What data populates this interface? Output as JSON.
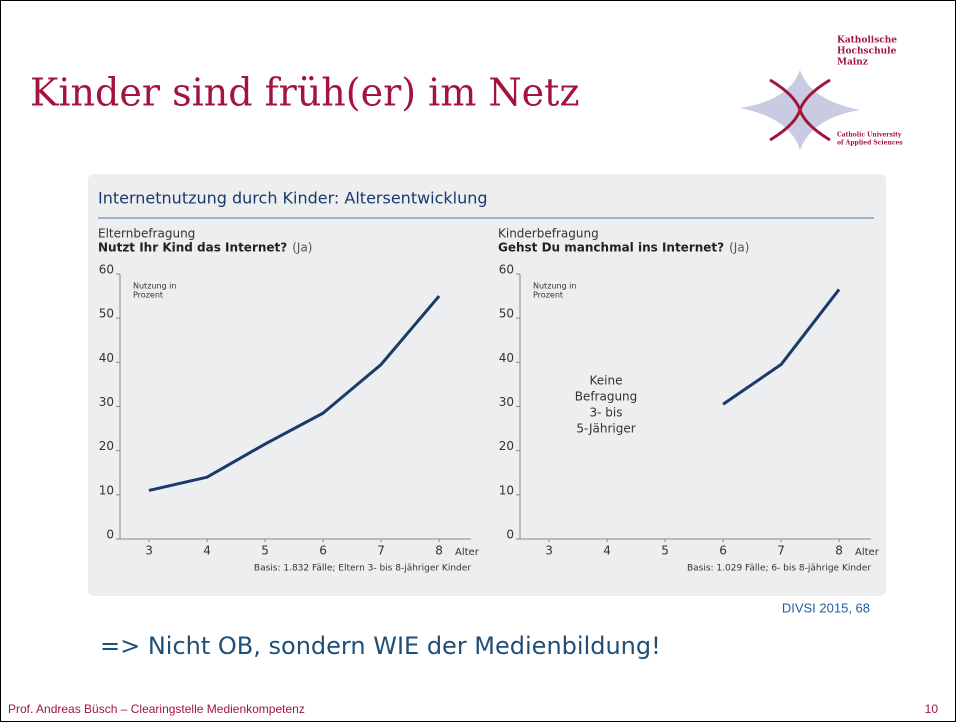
{
  "slide": {
    "title": "Kinder sind früh(er) im Netz",
    "logo": {
      "name_lines": [
        "Katholische",
        "Hochschule",
        "Mainz"
      ],
      "english_lines": [
        "Catholic University",
        "of Applied Sciences"
      ]
    },
    "panel_title": "Internetnutzung durch Kinder: Altersentwicklung",
    "source": "DIVSI 2015, 68",
    "bullet": "=> Nicht OB, sondern WIE der Medienbildung!",
    "footer": "Prof. Andreas Büsch – Clearingstelle Medienkompetenz",
    "page_number": "10"
  },
  "chart_data": [
    {
      "type": "line",
      "subtitle": "Elternbefragung",
      "question": "Nutzt Ihr Kind das Internet?",
      "answer": "(Ja)",
      "y_annotation_lines": [
        "Nutzung in",
        "Prozent"
      ],
      "x_label": "Alter",
      "note": "Basis: 1.832 Fälle; Eltern 3- bis 8-jähriger Kinder",
      "x": [
        3,
        4,
        5,
        6,
        7,
        8
      ],
      "series": [
        {
          "color": "#1b3a6b",
          "values": [
            11,
            14,
            21.5,
            28.5,
            39.5,
            55
          ]
        }
      ],
      "xlim": [
        2.5,
        8.55
      ],
      "xticks": [
        3,
        4,
        5,
        6,
        7,
        8
      ],
      "ylim": [
        0,
        60
      ],
      "yticks": [
        0,
        10,
        20,
        30,
        40,
        50,
        60
      ]
    },
    {
      "type": "line",
      "subtitle": "Kinderbefragung",
      "question": "Gehst Du manchmal ins Internet?",
      "answer": "(Ja)",
      "y_annotation_lines": [
        "Nutzung in",
        "Prozent"
      ],
      "x_label": "Alter",
      "note": "Basis: 1.029 Fälle; 6- bis 8-jährige Kinder",
      "annotation_lines": [
        "Keine",
        "Befragung",
        "3- bis",
        "5-Jähriger"
      ],
      "x": [
        6,
        7,
        8
      ],
      "series": [
        {
          "color": "#1b3a6b",
          "values": [
            30.5,
            39.5,
            56.5
          ]
        }
      ],
      "xlim": [
        2.5,
        8.55
      ],
      "xticks": [
        3,
        4,
        5,
        6,
        7,
        8
      ],
      "ylim": [
        0,
        60
      ],
      "yticks": [
        0,
        10,
        20,
        30,
        40,
        50,
        60
      ]
    }
  ]
}
